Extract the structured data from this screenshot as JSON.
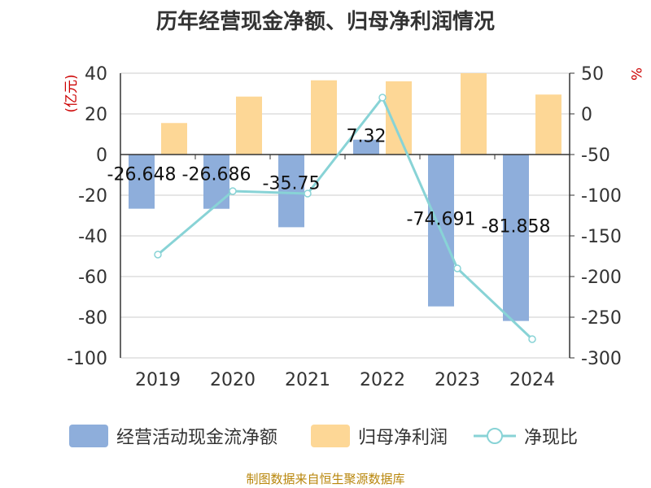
{
  "chart_data": {
    "type": "bar",
    "title": "历年经营现金净额、归母净利润情况",
    "categories": [
      "2019",
      "2020",
      "2021",
      "2022",
      "2023",
      "2024"
    ],
    "left_axis": {
      "unit": "(亿元)",
      "ylim": [
        -100,
        40
      ],
      "ticks": [
        "40",
        "20",
        "0",
        "-20",
        "-40",
        "-60",
        "-80",
        "-100"
      ]
    },
    "right_axis": {
      "unit": "%",
      "ylim": [
        -300,
        50
      ],
      "ticks": [
        "50",
        "0",
        "-50",
        "-100",
        "-150",
        "-200",
        "-250",
        "-300"
      ]
    },
    "series": [
      {
        "name": "经营活动现金流净额",
        "type": "bar",
        "axis": "left",
        "color": "#8eaedb",
        "values": [
          -26.648,
          -26.686,
          -35.75,
          7.32,
          -74.691,
          -81.858
        ],
        "labels": [
          "-26.648",
          "-26.686",
          "-35.75",
          "7.32",
          "-74.691",
          "-81.858"
        ]
      },
      {
        "name": "归母净利润",
        "type": "bar",
        "axis": "left",
        "color": "#fdd796",
        "values": [
          15.5,
          28.5,
          36.5,
          36,
          40,
          29.5
        ]
      },
      {
        "name": "净现比",
        "type": "line",
        "axis": "right",
        "color": "#88d3d6",
        "values": [
          -173,
          -95,
          -98,
          20,
          -190,
          -277
        ]
      }
    ],
    "grid": true,
    "legend_position": "bottom"
  },
  "footer": {
    "source": "制图数据来自恒生聚源数据库"
  }
}
